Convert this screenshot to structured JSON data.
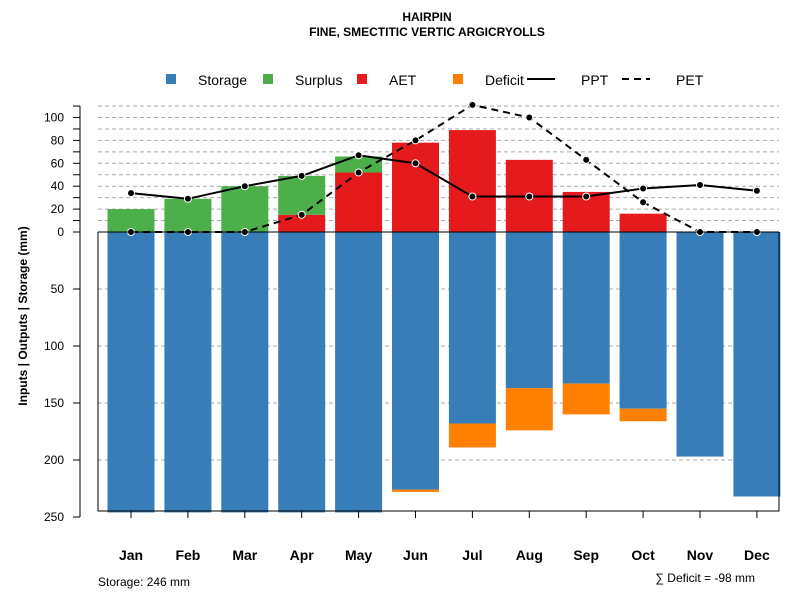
{
  "chart_data": {
    "type": "bar",
    "title": "HAIRPIN",
    "subtitle": "FINE, SMECTITIC VERTIC ARGICRYOLLS",
    "ylabel": "Inputs | Outputs | Storage     (mm)",
    "ylim": [
      -250,
      110
    ],
    "y_ticks_top": [
      0,
      20,
      40,
      60,
      80,
      100
    ],
    "y_ticks_bottom": [
      50,
      100,
      150,
      200,
      250
    ],
    "categories": [
      "Jan",
      "Feb",
      "Mar",
      "Apr",
      "May",
      "Jun",
      "Jul",
      "Aug",
      "Sep",
      "Oct",
      "Nov",
      "Dec"
    ],
    "legend": [
      {
        "key": "storage",
        "label": "Storage",
        "color": "#377EB8",
        "kind": "box"
      },
      {
        "key": "surplus",
        "label": "Surplus",
        "color": "#4DAF4A",
        "kind": "box"
      },
      {
        "key": "aet",
        "label": "AET",
        "color": "#E41A1C",
        "kind": "box"
      },
      {
        "key": "deficit",
        "label": "Deficit",
        "color": "#FF7F00",
        "kind": "box"
      },
      {
        "key": "ppt",
        "label": "PPT",
        "color": "#000000",
        "kind": "line"
      },
      {
        "key": "pet",
        "label": "PET",
        "color": "#000000",
        "kind": "dash"
      }
    ],
    "series": [
      {
        "name": "Storage",
        "values": [
          246,
          246,
          246,
          246,
          246,
          226,
          168,
          137,
          133,
          155,
          197,
          232
        ]
      },
      {
        "name": "Surplus",
        "values": [
          20,
          29,
          40,
          34,
          14,
          0,
          0,
          0,
          0,
          0,
          0,
          0
        ]
      },
      {
        "name": "AET",
        "values": [
          0,
          0,
          0,
          15,
          52,
          78,
          89,
          63,
          35,
          16,
          0,
          0
        ]
      },
      {
        "name": "Deficit",
        "values": [
          0,
          0,
          0,
          0,
          0,
          2,
          21,
          37,
          27,
          11,
          0,
          0
        ]
      },
      {
        "name": "PPT",
        "values": [
          34,
          29,
          40,
          49,
          67,
          60,
          31,
          31,
          31,
          38,
          41,
          36
        ]
      },
      {
        "name": "PET",
        "values": [
          0,
          0,
          0,
          15,
          52,
          80,
          111,
          100,
          63,
          26,
          0,
          0
        ]
      }
    ],
    "footer_left": "Storage: 246 mm",
    "footer_right": "∑ Deficit = -98 mm"
  }
}
